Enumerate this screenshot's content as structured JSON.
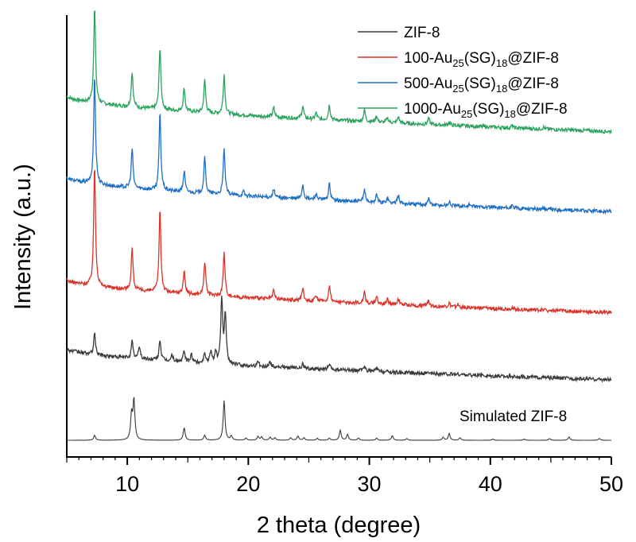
{
  "chart_data": {
    "type": "line",
    "xlabel": "2 theta (degree)",
    "ylabel": "Intensity (a.u.)",
    "xlim": [
      5,
      50
    ],
    "ylim": [
      0,
      100
    ],
    "x_ticks": [
      "10",
      "20",
      "30",
      "40",
      "50"
    ],
    "y_ticks": [],
    "grid": false,
    "legend_position": "top-right",
    "annotation": "Simulated ZIF-8",
    "series": [
      {
        "name": "1000-Au25(SG)18@ZIF-8",
        "legend_main": "1000-Au",
        "legend_sub1": "25",
        "legend_mid": "(SG)",
        "legend_sub2": "18",
        "legend_tail": "@ZIF-8",
        "color": "#2ca25f",
        "baseline": [
          82.5,
          74.0
        ],
        "peaks": [
          [
            7.3,
            23.0
          ],
          [
            10.4,
            8.5
          ],
          [
            12.7,
            15.0
          ],
          [
            14.7,
            5.5
          ],
          [
            16.4,
            7.8
          ],
          [
            18.0,
            9.5
          ],
          [
            22.1,
            2.2
          ],
          [
            24.5,
            3.0
          ],
          [
            25.6,
            1.5
          ],
          [
            26.7,
            3.6
          ],
          [
            29.6,
            2.8
          ],
          [
            30.6,
            1.5
          ],
          [
            31.5,
            1.1
          ],
          [
            32.4,
            1.5
          ],
          [
            34.9,
            1.4
          ],
          [
            36.6,
            0.8
          ],
          [
            41.8,
            0.5
          ],
          [
            44.4,
            0.4
          ]
        ]
      },
      {
        "name": "500-Au25(SG)18@ZIF-8",
        "legend_main": "500-Au",
        "legend_sub1": "25",
        "legend_mid": "(SG)",
        "legend_sub2": "18",
        "legend_tail": "@ZIF-8",
        "color": "#1f6fc5",
        "baseline": [
          63.0,
          54.8
        ],
        "peaks": [
          [
            7.3,
            26.0
          ],
          [
            10.4,
            9.5
          ],
          [
            12.7,
            18.5
          ],
          [
            14.7,
            5.0
          ],
          [
            16.4,
            8.5
          ],
          [
            18.0,
            11.0
          ],
          [
            19.6,
            1.0
          ],
          [
            22.1,
            2.0
          ],
          [
            24.5,
            3.5
          ],
          [
            25.6,
            1.5
          ],
          [
            26.7,
            3.9
          ],
          [
            29.6,
            3.0
          ],
          [
            30.6,
            1.8
          ],
          [
            31.5,
            1.3
          ],
          [
            32.4,
            2.0
          ],
          [
            34.9,
            1.6
          ],
          [
            36.6,
            0.9
          ],
          [
            38.3,
            0.5
          ],
          [
            41.8,
            0.5
          ],
          [
            44.4,
            0.4
          ]
        ]
      },
      {
        "name": "100-Au25(SG)18@ZIF-8",
        "legend_main": "100-Au",
        "legend_sub1": "25",
        "legend_mid": "(SG)",
        "legend_sub2": "18",
        "legend_tail": "@ZIF-8",
        "color": "#d9342b",
        "baseline": [
          38.5,
          30.6
        ],
        "peaks": [
          [
            7.3,
            29.0
          ],
          [
            10.4,
            10.0
          ],
          [
            12.7,
            20.0
          ],
          [
            14.7,
            5.5
          ],
          [
            16.4,
            8.0
          ],
          [
            18.0,
            10.5
          ],
          [
            22.1,
            2.0
          ],
          [
            24.5,
            3.0
          ],
          [
            25.6,
            1.3
          ],
          [
            26.7,
            3.8
          ],
          [
            29.6,
            2.8
          ],
          [
            30.6,
            1.8
          ],
          [
            31.5,
            1.2
          ],
          [
            32.4,
            1.5
          ],
          [
            34.9,
            1.6
          ],
          [
            36.6,
            0.8
          ],
          [
            37.3,
            0.6
          ],
          [
            41.8,
            0.4
          ],
          [
            44.4,
            0.3
          ]
        ]
      },
      {
        "name": "ZIF-8",
        "legend_main": "ZIF-8",
        "legend_sub1": "",
        "legend_mid": "",
        "legend_sub2": "",
        "legend_tail": "",
        "color": "#3a3a3a",
        "baseline": [
          22.0,
          14.5
        ],
        "peaks": [
          [
            7.3,
            5.0
          ],
          [
            10.4,
            4.0
          ],
          [
            11.0,
            3.0
          ],
          [
            12.7,
            5.0
          ],
          [
            13.7,
            1.5
          ],
          [
            14.7,
            2.5
          ],
          [
            15.3,
            2.0
          ],
          [
            16.4,
            2.5
          ],
          [
            16.9,
            2.8
          ],
          [
            17.3,
            3.0
          ],
          [
            17.8,
            15.5
          ],
          [
            18.1,
            12.0
          ],
          [
            20.8,
            1.2
          ],
          [
            21.8,
            1.3
          ],
          [
            24.5,
            1.0
          ],
          [
            26.7,
            1.2
          ],
          [
            29.6,
            1.2
          ],
          [
            30.6,
            0.8
          ]
        ]
      },
      {
        "name": "Simulated ZIF-8",
        "legend_main": "",
        "legend_sub1": "",
        "legend_mid": "",
        "legend_sub2": "",
        "legend_tail": "",
        "color": "#3a3a3a",
        "baseline": [
          0.0,
          0.0
        ],
        "peaks": [
          [
            7.3,
            1.2
          ],
          [
            10.35,
            6.0
          ],
          [
            10.55,
            9.5
          ],
          [
            14.7,
            3.0
          ],
          [
            16.4,
            1.2
          ],
          [
            18.0,
            9.5
          ],
          [
            18.6,
            1.0
          ],
          [
            19.8,
            0.5
          ],
          [
            20.8,
            0.9
          ],
          [
            21.1,
            0.8
          ],
          [
            21.8,
            0.7
          ],
          [
            22.2,
            0.6
          ],
          [
            23.5,
            0.6
          ],
          [
            24.1,
            1.0
          ],
          [
            24.6,
            0.6
          ],
          [
            25.7,
            0.5
          ],
          [
            26.7,
            0.5
          ],
          [
            27.6,
            2.4
          ],
          [
            28.2,
            1.4
          ],
          [
            29.1,
            0.5
          ],
          [
            30.6,
            0.5
          ],
          [
            31.9,
            1.1
          ],
          [
            33.1,
            0.4
          ],
          [
            36.1,
            0.7
          ],
          [
            36.6,
            1.6
          ],
          [
            37.5,
            0.6
          ],
          [
            40.2,
            0.3
          ],
          [
            42.8,
            0.3
          ],
          [
            44.9,
            0.4
          ],
          [
            46.5,
            0.8
          ],
          [
            49.0,
            0.4
          ]
        ]
      }
    ]
  }
}
